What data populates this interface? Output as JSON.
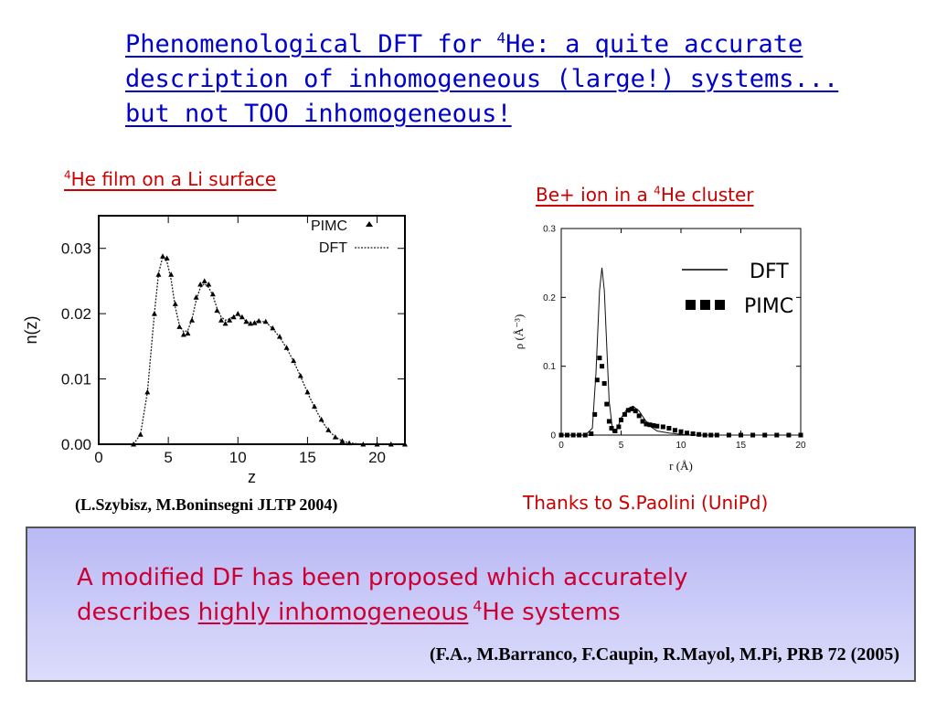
{
  "title": {
    "line1_a": "Phenomenological DFT for ",
    "line1_sup": "4",
    "line1_b": "He: a quite accurate",
    "line2": "description of inhomogeneous (large!) systems...",
    "line3": "but not TOO inhomogeneous!"
  },
  "left_panel": {
    "heading_sup": "4",
    "heading": "He film on a Li surface",
    "citation": "(L.Szybisz, M.Boninsegni JLTP 2004)"
  },
  "right_panel": {
    "heading_a": "Be+ ion in a ",
    "heading_sup": "4",
    "heading_b": "He cluster",
    "credit": "Thanks to S.Paolini (UniPd)"
  },
  "box": {
    "line1": "A modified DF has been proposed which accurately",
    "line2_a": "describes ",
    "line2_ul": "highly inhomogeneous",
    "line2_sup": " 4",
    "line2_b": "He systems",
    "citation": "(F.A., M.Barranco, F.Caupin, R.Mayol, M.Pi, PRB 72 (2005)"
  },
  "chart_data": [
    {
      "type": "line",
      "xlabel": "z",
      "ylabel": "n(z)",
      "xlim": [
        0,
        22
      ],
      "ylim": [
        0,
        0.035
      ],
      "xticks": [
        "0",
        "5",
        "10",
        "15",
        "20"
      ],
      "yticks": [
        "0.00",
        "0.01",
        "0.02",
        "0.03"
      ],
      "legend": [
        "PIMC",
        "DFT"
      ],
      "legend_position": "top-right",
      "series": [
        {
          "name": "PIMC",
          "style": "triangles",
          "x": [
            2.5,
            3.0,
            3.5,
            4.0,
            4.3,
            4.6,
            4.9,
            5.2,
            5.5,
            5.8,
            6.1,
            6.4,
            6.7,
            7.0,
            7.3,
            7.6,
            7.9,
            8.2,
            8.5,
            8.8,
            9.1,
            9.4,
            9.7,
            10.0,
            10.3,
            10.6,
            10.9,
            11.2,
            11.5,
            12.0,
            12.5,
            13.0,
            13.5,
            14.0,
            14.5,
            15.0,
            15.5,
            16.0,
            16.5,
            17.0,
            17.5,
            18.0,
            19.0,
            20.0,
            21.0,
            22.0
          ],
          "y": [
            0.0,
            0.0015,
            0.008,
            0.02,
            0.026,
            0.0288,
            0.0285,
            0.026,
            0.0215,
            0.018,
            0.0168,
            0.017,
            0.019,
            0.0225,
            0.0245,
            0.025,
            0.0245,
            0.023,
            0.0205,
            0.019,
            0.0185,
            0.019,
            0.0195,
            0.02,
            0.0195,
            0.0188,
            0.0185,
            0.0186,
            0.0189,
            0.0188,
            0.0178,
            0.0165,
            0.0148,
            0.0128,
            0.0105,
            0.008,
            0.0058,
            0.0038,
            0.0022,
            0.0011,
            0.0005,
            0.0002,
            0.0,
            0.0,
            0.0,
            0.0
          ]
        },
        {
          "name": "DFT",
          "style": "dotted",
          "x": [
            2.5,
            3.0,
            3.5,
            4.0,
            4.3,
            4.6,
            4.9,
            5.2,
            5.5,
            5.8,
            6.1,
            6.4,
            6.7,
            7.0,
            7.3,
            7.6,
            7.9,
            8.2,
            8.5,
            8.8,
            9.1,
            9.4,
            9.7,
            10.0,
            10.3,
            10.6,
            10.9,
            11.2,
            11.5,
            12.0,
            12.5,
            13.0,
            13.5,
            14.0,
            14.5,
            15.0,
            15.5,
            16.0,
            16.5,
            17.0,
            17.5,
            18.0,
            19.0,
            20.0,
            21.0,
            22.0
          ],
          "y": [
            0.0,
            0.0015,
            0.008,
            0.02,
            0.0262,
            0.0287,
            0.028,
            0.0252,
            0.021,
            0.0182,
            0.0172,
            0.0174,
            0.0192,
            0.022,
            0.024,
            0.0246,
            0.024,
            0.0228,
            0.0208,
            0.0195,
            0.019,
            0.0192,
            0.0196,
            0.0198,
            0.0194,
            0.0188,
            0.0186,
            0.0187,
            0.0189,
            0.0187,
            0.0177,
            0.0164,
            0.0147,
            0.0127,
            0.0104,
            0.0079,
            0.0057,
            0.0037,
            0.0021,
            0.0011,
            0.0005,
            0.0002,
            0.0,
            0.0,
            0.0,
            0.0
          ]
        }
      ]
    },
    {
      "type": "line",
      "xlabel": "r (Å)",
      "ylabel": "ρ (Å⁻³)",
      "xlim": [
        0,
        20
      ],
      "ylim": [
        0,
        0.3
      ],
      "xticks": [
        "0",
        "5",
        "10",
        "15",
        "20"
      ],
      "yticks": [
        "0",
        "0.1",
        "0.2",
        "0.3"
      ],
      "legend": [
        "DFT",
        "PIMC"
      ],
      "legend_position": "top-right",
      "series": [
        {
          "name": "DFT",
          "style": "line",
          "x": [
            0.0,
            2.0,
            2.6,
            2.9,
            3.2,
            3.4,
            3.6,
            3.8,
            4.0,
            4.3,
            4.7,
            5.0,
            5.5,
            6.0,
            6.5,
            7.0,
            7.5,
            8.0,
            9.0,
            10.0,
            11.0,
            12.0,
            14.0,
            16.0,
            18.0,
            20.0
          ],
          "y": [
            0.0,
            0.0,
            0.01,
            0.09,
            0.21,
            0.243,
            0.21,
            0.13,
            0.05,
            0.005,
            0.01,
            0.025,
            0.038,
            0.042,
            0.035,
            0.022,
            0.012,
            0.006,
            0.003,
            0.001,
            0.0,
            0.0,
            0.0,
            0.0,
            0.0,
            0.0
          ]
        },
        {
          "name": "PIMC",
          "style": "squares",
          "x": [
            0.0,
            0.5,
            1.0,
            1.5,
            2.0,
            2.5,
            2.8,
            3.0,
            3.2,
            3.4,
            3.6,
            3.8,
            4.0,
            4.2,
            4.5,
            4.8,
            5.0,
            5.3,
            5.6,
            5.9,
            6.2,
            6.5,
            6.8,
            7.1,
            7.4,
            7.7,
            8.0,
            8.5,
            9.0,
            9.5,
            10.0,
            10.5,
            11.0,
            11.5,
            12.0,
            12.5,
            13.0,
            14.0,
            15.0,
            16.0,
            17.0,
            18.0,
            19.0,
            20.0
          ],
          "y": [
            0.0,
            0.0,
            0.0,
            0.0,
            0.0,
            0.002,
            0.03,
            0.08,
            0.112,
            0.1,
            0.075,
            0.045,
            0.02,
            0.01,
            0.006,
            0.012,
            0.022,
            0.03,
            0.036,
            0.038,
            0.035,
            0.028,
            0.02,
            0.016,
            0.015,
            0.014,
            0.013,
            0.012,
            0.01,
            0.007,
            0.005,
            0.003,
            0.002,
            0.001,
            0.0,
            0.0,
            0.0,
            0.0,
            0.0,
            0.0,
            0.0,
            0.0,
            0.0,
            0.0
          ]
        }
      ]
    }
  ]
}
